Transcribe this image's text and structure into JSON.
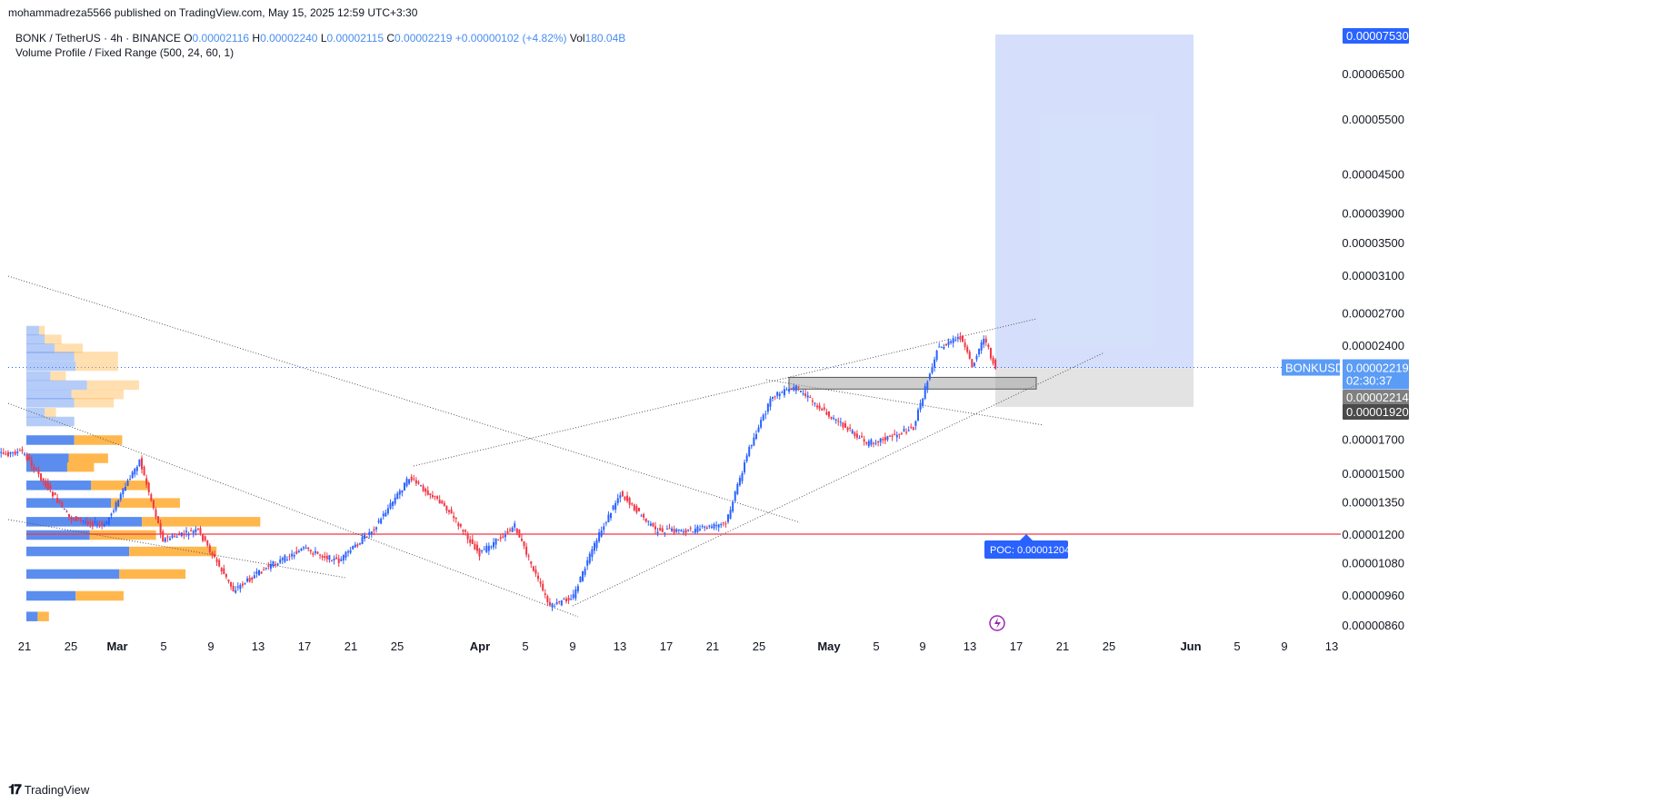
{
  "header": {
    "publish_line": "mohammadreza5566 published on TradingView.com, May 15, 2025 12:59 UTC+3:30"
  },
  "legend": {
    "symbol": "BONK / TetherUS · 4h · BINANCE",
    "o_label": "O",
    "o_value": "0.00002116",
    "h_label": "H",
    "h_value": "0.00002240",
    "l_label": "L",
    "l_value": "0.00002115",
    "c_label": "C",
    "c_value": "0.00002219",
    "change": "+0.00000102 (+4.82%)",
    "vol_label": "Vol",
    "vol_value": "180.04B",
    "indicator": "Volume Profile / Fixed Range (500, 24, 60, 1)"
  },
  "footer": {
    "brand": "TradingView"
  },
  "colors": {
    "up": "#2962ff",
    "down": "#f23645",
    "poc": "#f23645",
    "vp_up": "#5b8def",
    "vp_down": "#ffb74d",
    "target_zone": "#d0dcfb",
    "stop_zone": "#e0e0e0",
    "current_label_bg": "#5b9cf6",
    "dark_label_bg": "#4a4a4a",
    "grey_label_bg": "#808080"
  },
  "price_axis": {
    "ticks": [
      "0.00006500",
      "0.00005500",
      "0.00004500",
      "0.00003900",
      "0.00003500",
      "0.00003100",
      "0.00002700",
      "0.00002400",
      "0.00001700",
      "0.00001500",
      "0.00001350",
      "0.00001200",
      "0.00001080",
      "0.00000960",
      "0.00000860"
    ],
    "labels": {
      "target": "0.00007530",
      "symbol": "BONKUSDT",
      "current": "0.00002219",
      "countdown": "02:30:37",
      "entry": "0.00002214",
      "stop": "0.00001920"
    }
  },
  "poc": {
    "label": "POC: 0.00001204",
    "value": 1.204e-05
  },
  "chart_data": {
    "type": "line",
    "title": "BONK / TetherUS · 4h · BINANCE",
    "yscale": "log",
    "ylim": [
      8.2e-06,
      7.6e-06
    ],
    "x_ticks": [
      "21",
      "25",
      "Mar",
      "5",
      "9",
      "13",
      "17",
      "21",
      "25",
      "Apr",
      "5",
      "9",
      "13",
      "17",
      "21",
      "25",
      "May",
      "5",
      "9",
      "13",
      "17",
      "21",
      "25",
      "Jun",
      "5",
      "9",
      "13"
    ],
    "series": [
      {
        "name": "BONKUSDT",
        "x": [
          "Feb 18",
          "Feb 21",
          "Feb 25",
          "Feb 28",
          "Mar 3",
          "Mar 5",
          "Mar 8",
          "Mar 11",
          "Mar 14",
          "Mar 17",
          "Mar 20",
          "Mar 23",
          "Mar 26",
          "Mar 29",
          "Apr 1",
          "Apr 4",
          "Apr 7",
          "Apr 9",
          "Apr 11",
          "Apr 13",
          "Apr 16",
          "Apr 19",
          "Apr 22",
          "Apr 24",
          "Apr 26",
          "Apr 28",
          "May 1",
          "May 4",
          "May 6",
          "May 8",
          "May 10",
          "May 12",
          "May 13",
          "May 14",
          "May 15"
        ],
        "values": [
          1.6e-05,
          1.63e-05,
          1.28e-05,
          1.24e-05,
          1.58e-05,
          1.18e-05,
          1.22e-05,
          9.8e-06,
          1.07e-05,
          1.14e-05,
          1.09e-05,
          1.23e-05,
          1.48e-05,
          1.34e-05,
          1.12e-05,
          1.24e-05,
          9.2e-06,
          9.6e-06,
          1.18e-05,
          1.4e-05,
          1.22e-05,
          1.22e-05,
          1.25e-05,
          1.65e-05,
          2e-05,
          2.06e-05,
          1.85e-05,
          1.68e-05,
          1.72e-05,
          1.78e-05,
          2.37e-05,
          2.48e-05,
          2.23e-05,
          2.48e-05,
          2.21e-05
        ]
      }
    ],
    "volume_profile": [
      {
        "price": 2.54e-05,
        "up": 0.9,
        "down": 0.4
      },
      {
        "price": 2.46e-05,
        "up": 1.3,
        "down": 1.2
      },
      {
        "price": 2.38e-05,
        "up": 2.0,
        "down": 2.0
      },
      {
        "price": 2.31e-05,
        "up": 3.4,
        "down": 3.1
      },
      {
        "price": 2.23e-05,
        "up": 3.5,
        "down": 3.0
      },
      {
        "price": 2.15e-05,
        "up": 1.7,
        "down": 1.1
      },
      {
        "price": 2.08e-05,
        "up": 4.3,
        "down": 3.7
      },
      {
        "price": 2.01e-05,
        "up": 3.2,
        "down": 3.7
      },
      {
        "price": 1.95e-05,
        "up": 3.4,
        "down": 2.8
      },
      {
        "price": 1.88e-05,
        "up": 1.3,
        "down": 0.8
      },
      {
        "price": 1.82e-05,
        "up": 3.4,
        "down": 0.0
      },
      {
        "price": 1.7e-05,
        "up": 3.4,
        "down": 3.4
      },
      {
        "price": 1.59e-05,
        "up": 3.0,
        "down": 2.8
      },
      {
        "price": 1.54e-05,
        "up": 2.9,
        "down": 1.9
      },
      {
        "price": 1.44e-05,
        "up": 4.6,
        "down": 4.1
      },
      {
        "price": 1.35e-05,
        "up": 6.0,
        "down": 4.9
      },
      {
        "price": 1.26e-05,
        "up": 8.2,
        "down": 8.4
      },
      {
        "price": 1.2e-05,
        "up": 4.5,
        "down": 4.7
      },
      {
        "price": 1.13e-05,
        "up": 7.3,
        "down": 6.2
      },
      {
        "price": 1.04e-05,
        "up": 6.6,
        "down": 4.7
      },
      {
        "price": 9.6e-06,
        "up": 3.5,
        "down": 3.4
      },
      {
        "price": 8.9e-06,
        "up": 0.8,
        "down": 0.8
      }
    ],
    "position": {
      "entry": 2.214e-05,
      "stop": 1.92e-05,
      "target": 7.53e-05
    }
  }
}
